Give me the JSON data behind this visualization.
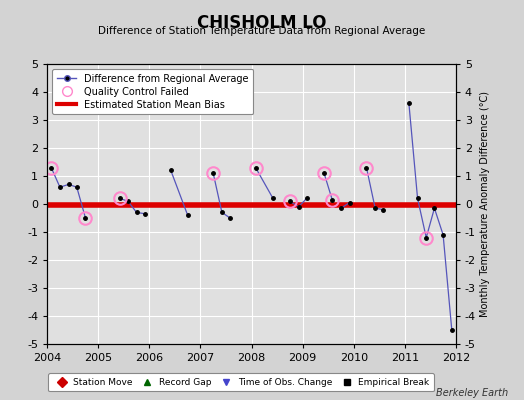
{
  "title": "CHISHOLM LO",
  "subtitle": "Difference of Station Temperature Data from Regional Average",
  "ylabel_right": "Monthly Temperature Anomaly Difference (°C)",
  "xlim": [
    2004,
    2012
  ],
  "ylim": [
    -5,
    5
  ],
  "xticks": [
    2004,
    2005,
    2006,
    2007,
    2008,
    2009,
    2010,
    2011,
    2012
  ],
  "yticks": [
    -5,
    -4,
    -3,
    -2,
    -1,
    0,
    1,
    2,
    3,
    4,
    5
  ],
  "bias_value": -0.05,
  "background_color": "#d3d3d3",
  "plot_background": "#e0e0e0",
  "grid_color": "#ffffff",
  "line_color": "#5555bb",
  "dot_color": "#000000",
  "qc_color": "#ff88cc",
  "bias_color": "#dd0000",
  "watermark": "Berkeley Earth",
  "segments": [
    [
      2004.08,
      2004.25,
      2004.42,
      2004.58,
      2004.75
    ],
    [
      2005.42,
      2005.58,
      2005.75,
      2005.92
    ],
    [
      2006.42,
      2006.75
    ],
    [
      2007.25,
      2007.42,
      2007.58
    ],
    [
      2008.08,
      2008.42
    ],
    [
      2008.75,
      2008.92,
      2009.08
    ],
    [
      2009.42,
      2009.58
    ],
    [
      2009.75,
      2009.92
    ],
    [
      2010.25,
      2010.42,
      2010.58
    ],
    [
      2011.08,
      2011.25,
      2011.42,
      2011.58,
      2011.75,
      2011.92
    ]
  ],
  "seg_values": [
    [
      1.3,
      0.6,
      0.7,
      0.6,
      -0.5
    ],
    [
      0.2,
      0.1,
      -0.3,
      -0.35
    ],
    [
      1.2,
      -0.4
    ],
    [
      1.1,
      -0.3,
      -0.5
    ],
    [
      1.3,
      0.2
    ],
    [
      0.1,
      -0.1,
      0.2
    ],
    [
      1.1,
      0.15
    ],
    [
      -0.15,
      0.05
    ],
    [
      1.3,
      -0.15,
      -0.2
    ],
    [
      3.6,
      0.2,
      -1.2,
      -0.15,
      -1.1,
      -4.5
    ]
  ],
  "qc_times": [
    2004.08,
    2004.75,
    2005.42,
    2007.25,
    2008.08,
    2008.75,
    2009.42,
    2009.58,
    2010.25,
    2011.42
  ],
  "qc_values": [
    1.3,
    -0.5,
    0.2,
    1.1,
    1.3,
    0.1,
    1.1,
    0.15,
    1.3,
    -1.2
  ],
  "bottom_legend": [
    {
      "label": "Station Move",
      "color": "#cc0000",
      "marker": "D",
      "mfc": "#cc0000"
    },
    {
      "label": "Record Gap",
      "color": "#006600",
      "marker": "^",
      "mfc": "#006600"
    },
    {
      "label": "Time of Obs. Change",
      "color": "#4444cc",
      "marker": "v",
      "mfc": "#4444cc"
    },
    {
      "label": "Empirical Break",
      "color": "#000000",
      "marker": "s",
      "mfc": "#000000"
    }
  ]
}
